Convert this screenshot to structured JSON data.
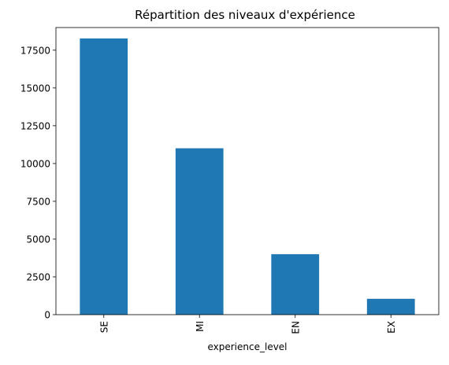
{
  "chart_data": {
    "type": "bar",
    "title": "Répartition des niveaux d'expérience",
    "xlabel": "experience_level",
    "ylabel": "",
    "categories": [
      "SE",
      "MI",
      "EN",
      "EX"
    ],
    "values": [
      18280,
      11010,
      4000,
      1050
    ],
    "ylim": [
      0,
      19000
    ],
    "yticks": [
      0,
      2500,
      5000,
      7500,
      10000,
      12500,
      15000,
      17500
    ],
    "ytick_labels": [
      "0",
      "2500",
      "5000",
      "7500",
      "10000",
      "12500",
      "15000",
      "17500"
    ],
    "grid": false,
    "legend": "none",
    "bar_color": "#1f77b4"
  }
}
